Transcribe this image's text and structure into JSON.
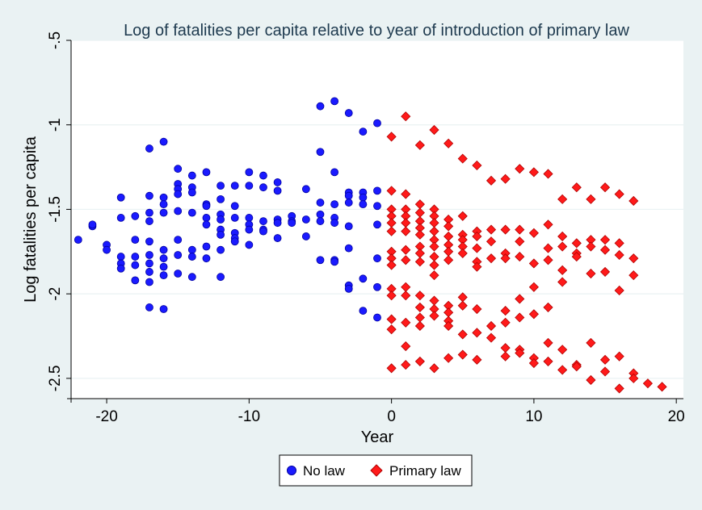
{
  "chart_data": {
    "type": "scatter",
    "title": "Log of fatalities per capita relative to year of introduction of primary law",
    "xlabel": "Year",
    "ylabel": "Log fatalities per capita",
    "xlim": [
      -22.5,
      20.5
    ],
    "ylim": [
      -2.62,
      -0.5
    ],
    "x_ticks": [
      -20,
      -10,
      0,
      10,
      20
    ],
    "x_tick_labels": [
      "-20",
      "-10",
      "0",
      "10",
      "20"
    ],
    "y_ticks": [
      -0.5,
      -1,
      -1.5,
      -2,
      -2.5
    ],
    "y_tick_labels": [
      "-.5",
      "-1",
      "-1.5",
      "-2",
      "-2.5"
    ],
    "grid": true,
    "legend": "bottom-center",
    "series": [
      {
        "name": "No law",
        "marker": "circle",
        "color": "#1a1aff",
        "points": [
          [
            -22,
            -1.68
          ],
          [
            -21,
            -1.6
          ],
          [
            -21,
            -1.59
          ],
          [
            -20,
            -1.71
          ],
          [
            -20,
            -1.74
          ],
          [
            -19,
            -1.43
          ],
          [
            -19,
            -1.55
          ],
          [
            -19,
            -1.78
          ],
          [
            -19,
            -1.82
          ],
          [
            -19,
            -1.85
          ],
          [
            -18,
            -1.54
          ],
          [
            -18,
            -1.68
          ],
          [
            -18,
            -1.78
          ],
          [
            -18,
            -1.83
          ],
          [
            -18,
            -1.92
          ],
          [
            -17,
            -1.14
          ],
          [
            -17,
            -1.42
          ],
          [
            -17,
            -1.52
          ],
          [
            -17,
            -1.57
          ],
          [
            -17,
            -1.69
          ],
          [
            -17,
            -1.77
          ],
          [
            -17,
            -1.82
          ],
          [
            -17,
            -1.87
          ],
          [
            -17,
            -1.93
          ],
          [
            -17,
            -2.08
          ],
          [
            -16,
            -1.1
          ],
          [
            -16,
            -1.43
          ],
          [
            -16,
            -1.47
          ],
          [
            -16,
            -1.52
          ],
          [
            -16,
            -1.74
          ],
          [
            -16,
            -1.79
          ],
          [
            -16,
            -1.84
          ],
          [
            -16,
            -1.89
          ],
          [
            -16,
            -2.09
          ],
          [
            -15,
            -1.26
          ],
          [
            -15,
            -1.35
          ],
          [
            -15,
            -1.38
          ],
          [
            -15,
            -1.41
          ],
          [
            -15,
            -1.51
          ],
          [
            -15,
            -1.68
          ],
          [
            -15,
            -1.77
          ],
          [
            -15,
            -1.88
          ],
          [
            -14,
            -1.3
          ],
          [
            -14,
            -1.37
          ],
          [
            -14,
            -1.4
          ],
          [
            -14,
            -1.52
          ],
          [
            -14,
            -1.74
          ],
          [
            -14,
            -1.78
          ],
          [
            -14,
            -1.9
          ],
          [
            -13,
            -1.28
          ],
          [
            -13,
            -1.47
          ],
          [
            -13,
            -1.48
          ],
          [
            -13,
            -1.55
          ],
          [
            -13,
            -1.59
          ],
          [
            -13,
            -1.72
          ],
          [
            -13,
            -1.79
          ],
          [
            -12,
            -1.36
          ],
          [
            -12,
            -1.44
          ],
          [
            -12,
            -1.53
          ],
          [
            -12,
            -1.56
          ],
          [
            -12,
            -1.62
          ],
          [
            -12,
            -1.65
          ],
          [
            -12,
            -1.74
          ],
          [
            -12,
            -1.9
          ],
          [
            -11,
            -1.36
          ],
          [
            -11,
            -1.48
          ],
          [
            -11,
            -1.55
          ],
          [
            -11,
            -1.64
          ],
          [
            -11,
            -1.67
          ],
          [
            -11,
            -1.69
          ],
          [
            -10,
            -1.28
          ],
          [
            -10,
            -1.36
          ],
          [
            -10,
            -1.55
          ],
          [
            -10,
            -1.59
          ],
          [
            -10,
            -1.62
          ],
          [
            -10,
            -1.71
          ],
          [
            -9,
            -1.3
          ],
          [
            -9,
            -1.37
          ],
          [
            -9,
            -1.57
          ],
          [
            -9,
            -1.62
          ],
          [
            -9,
            -1.63
          ],
          [
            -8,
            -1.34
          ],
          [
            -8,
            -1.39
          ],
          [
            -8,
            -1.56
          ],
          [
            -8,
            -1.58
          ],
          [
            -8,
            -1.67
          ],
          [
            -7,
            -1.54
          ],
          [
            -7,
            -1.57
          ],
          [
            -7,
            -1.58
          ],
          [
            -6,
            -1.38
          ],
          [
            -6,
            -1.56
          ],
          [
            -6,
            -1.66
          ],
          [
            -5,
            -0.89
          ],
          [
            -5,
            -1.16
          ],
          [
            -5,
            -1.46
          ],
          [
            -5,
            -1.53
          ],
          [
            -5,
            -1.57
          ],
          [
            -5,
            -1.8
          ],
          [
            -4,
            -0.86
          ],
          [
            -4,
            -1.28
          ],
          [
            -4,
            -1.47
          ],
          [
            -4,
            -1.55
          ],
          [
            -4,
            -1.58
          ],
          [
            -4,
            -1.8
          ],
          [
            -4,
            -1.81
          ],
          [
            -3,
            -0.93
          ],
          [
            -3,
            -1.4
          ],
          [
            -3,
            -1.42
          ],
          [
            -3,
            -1.46
          ],
          [
            -3,
            -1.6
          ],
          [
            -3,
            -1.73
          ],
          [
            -3,
            -1.95
          ],
          [
            -3,
            -1.97
          ],
          [
            -2,
            -1.04
          ],
          [
            -2,
            -1.4
          ],
          [
            -2,
            -1.43
          ],
          [
            -2,
            -1.47
          ],
          [
            -2,
            -1.91
          ],
          [
            -2,
            -2.1
          ],
          [
            -1,
            -0.99
          ],
          [
            -1,
            -1.39
          ],
          [
            -1,
            -1.48
          ],
          [
            -1,
            -1.59
          ],
          [
            -1,
            -1.79
          ],
          [
            -1,
            -1.96
          ],
          [
            -1,
            -2.14
          ]
        ]
      },
      {
        "name": "Primary law",
        "marker": "diamond",
        "color": "#ff1a1a",
        "points": [
          [
            0,
            -1.07
          ],
          [
            0,
            -1.39
          ],
          [
            0,
            -1.5
          ],
          [
            0,
            -1.54
          ],
          [
            0,
            -1.58
          ],
          [
            0,
            -1.63
          ],
          [
            0,
            -1.75
          ],
          [
            0,
            -1.79
          ],
          [
            0,
            -1.83
          ],
          [
            0,
            -1.97
          ],
          [
            0,
            -2.01
          ],
          [
            0,
            -2.15
          ],
          [
            0,
            -2.21
          ],
          [
            0,
            -2.44
          ],
          [
            1,
            -0.95
          ],
          [
            1,
            -1.41
          ],
          [
            1,
            -1.5
          ],
          [
            1,
            -1.54
          ],
          [
            1,
            -1.58
          ],
          [
            1,
            -1.63
          ],
          [
            1,
            -1.74
          ],
          [
            1,
            -1.8
          ],
          [
            1,
            -1.96
          ],
          [
            1,
            -2.01
          ],
          [
            1,
            -2.17
          ],
          [
            1,
            -2.31
          ],
          [
            1,
            -2.42
          ],
          [
            2,
            -1.12
          ],
          [
            2,
            -1.47
          ],
          [
            2,
            -1.52
          ],
          [
            2,
            -1.57
          ],
          [
            2,
            -1.61
          ],
          [
            2,
            -1.65
          ],
          [
            2,
            -1.72
          ],
          [
            2,
            -1.76
          ],
          [
            2,
            -1.81
          ],
          [
            2,
            -2.01
          ],
          [
            2,
            -2.08
          ],
          [
            2,
            -2.14
          ],
          [
            2,
            -2.19
          ],
          [
            2,
            -2.4
          ],
          [
            3,
            -1.03
          ],
          [
            3,
            -1.5
          ],
          [
            3,
            -1.54
          ],
          [
            3,
            -1.58
          ],
          [
            3,
            -1.63
          ],
          [
            3,
            -1.68
          ],
          [
            3,
            -1.72
          ],
          [
            3,
            -1.78
          ],
          [
            3,
            -1.83
          ],
          [
            3,
            -1.89
          ],
          [
            3,
            -2.04
          ],
          [
            3,
            -2.09
          ],
          [
            3,
            -2.13
          ],
          [
            3,
            -2.44
          ],
          [
            4,
            -1.11
          ],
          [
            4,
            -1.56
          ],
          [
            4,
            -1.6
          ],
          [
            4,
            -1.66
          ],
          [
            4,
            -1.71
          ],
          [
            4,
            -1.75
          ],
          [
            4,
            -1.8
          ],
          [
            4,
            -2.07
          ],
          [
            4,
            -2.11
          ],
          [
            4,
            -2.16
          ],
          [
            4,
            -2.19
          ],
          [
            4,
            -2.38
          ],
          [
            5,
            -1.2
          ],
          [
            5,
            -1.54
          ],
          [
            5,
            -1.65
          ],
          [
            5,
            -1.68
          ],
          [
            5,
            -1.72
          ],
          [
            5,
            -1.76
          ],
          [
            5,
            -2.02
          ],
          [
            5,
            -2.07
          ],
          [
            5,
            -2.24
          ],
          [
            5,
            -2.36
          ],
          [
            6,
            -1.24
          ],
          [
            6,
            -1.63
          ],
          [
            6,
            -1.66
          ],
          [
            6,
            -1.73
          ],
          [
            6,
            -1.81
          ],
          [
            6,
            -1.84
          ],
          [
            6,
            -2.09
          ],
          [
            6,
            -2.23
          ],
          [
            6,
            -2.39
          ],
          [
            7,
            -1.33
          ],
          [
            7,
            -1.62
          ],
          [
            7,
            -1.69
          ],
          [
            7,
            -1.79
          ],
          [
            7,
            -2.19
          ],
          [
            7,
            -2.26
          ],
          [
            8,
            -1.32
          ],
          [
            8,
            -1.62
          ],
          [
            8,
            -1.76
          ],
          [
            8,
            -1.79
          ],
          [
            8,
            -2.1
          ],
          [
            8,
            -2.17
          ],
          [
            8,
            -2.32
          ],
          [
            8,
            -2.37
          ],
          [
            9,
            -1.26
          ],
          [
            9,
            -1.62
          ],
          [
            9,
            -1.69
          ],
          [
            9,
            -1.78
          ],
          [
            9,
            -2.03
          ],
          [
            9,
            -2.14
          ],
          [
            9,
            -2.33
          ],
          [
            9,
            -2.35
          ],
          [
            10,
            -1.28
          ],
          [
            10,
            -1.64
          ],
          [
            10,
            -1.82
          ],
          [
            10,
            -1.96
          ],
          [
            10,
            -2.12
          ],
          [
            10,
            -2.38
          ],
          [
            10,
            -2.41
          ],
          [
            11,
            -1.29
          ],
          [
            11,
            -1.59
          ],
          [
            11,
            -1.73
          ],
          [
            11,
            -1.8
          ],
          [
            11,
            -2.08
          ],
          [
            11,
            -2.29
          ],
          [
            11,
            -2.4
          ],
          [
            12,
            -1.44
          ],
          [
            12,
            -1.66
          ],
          [
            12,
            -1.72
          ],
          [
            12,
            -1.86
          ],
          [
            12,
            -1.93
          ],
          [
            12,
            -2.33
          ],
          [
            12,
            -2.45
          ],
          [
            13,
            -1.37
          ],
          [
            13,
            -1.7
          ],
          [
            13,
            -1.76
          ],
          [
            13,
            -1.78
          ],
          [
            13,
            -2.42
          ],
          [
            13,
            -2.43
          ],
          [
            14,
            -1.44
          ],
          [
            14,
            -1.68
          ],
          [
            14,
            -1.72
          ],
          [
            14,
            -1.88
          ],
          [
            14,
            -2.29
          ],
          [
            14,
            -2.51
          ],
          [
            15,
            -1.37
          ],
          [
            15,
            -1.68
          ],
          [
            15,
            -1.74
          ],
          [
            15,
            -1.87
          ],
          [
            15,
            -2.39
          ],
          [
            15,
            -2.46
          ],
          [
            16,
            -1.41
          ],
          [
            16,
            -1.7
          ],
          [
            16,
            -1.77
          ],
          [
            16,
            -1.98
          ],
          [
            16,
            -2.37
          ],
          [
            16,
            -2.56
          ],
          [
            17,
            -1.45
          ],
          [
            17,
            -1.79
          ],
          [
            17,
            -1.89
          ],
          [
            17,
            -2.47
          ],
          [
            17,
            -2.5
          ],
          [
            18,
            -2.53
          ],
          [
            19,
            -2.55
          ]
        ]
      }
    ]
  }
}
